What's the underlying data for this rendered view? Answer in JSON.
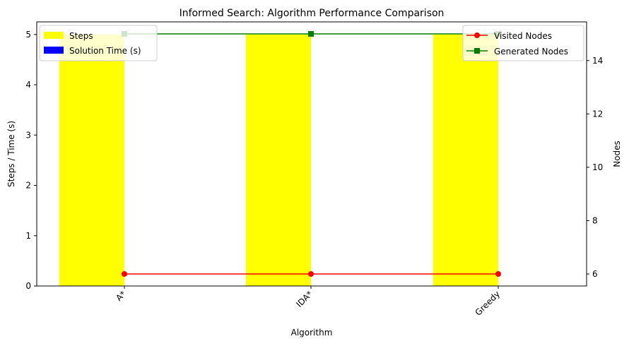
{
  "chart_data": {
    "type": "bar",
    "title": "Informed Search: Algorithm Performance Comparison",
    "xlabel": "Algorithm",
    "ylabel": "Steps / Time (s)",
    "ylabel_right": "Nodes",
    "categories": [
      "A*",
      "IDA*",
      "Greedy"
    ],
    "ylim": [
      0,
      5.25
    ],
    "ylim_right": [
      5.55,
      15.45
    ],
    "yticks": [
      "0",
      "1",
      "2",
      "3",
      "4",
      "5"
    ],
    "yticks_right": [
      "6",
      "8",
      "10",
      "12",
      "14"
    ],
    "bar_series": [
      {
        "name": "Steps",
        "color": "#ffff00",
        "values": [
          5,
          5,
          5
        ]
      },
      {
        "name": "Solution Time (s)",
        "color": "#0000ff",
        "values": [
          0.0,
          0.0,
          0.0
        ]
      }
    ],
    "line_series": [
      {
        "name": "Visited Nodes",
        "color": "#ff0000",
        "marker": "circle",
        "axis": "right",
        "values": [
          6,
          6,
          6
        ]
      },
      {
        "name": "Generated Nodes",
        "color": "#008000",
        "marker": "square",
        "axis": "right",
        "values": [
          15,
          15,
          15
        ]
      }
    ],
    "legend_left_placement": "upper-left",
    "legend_right_placement": "upper-right",
    "grid": false
  }
}
